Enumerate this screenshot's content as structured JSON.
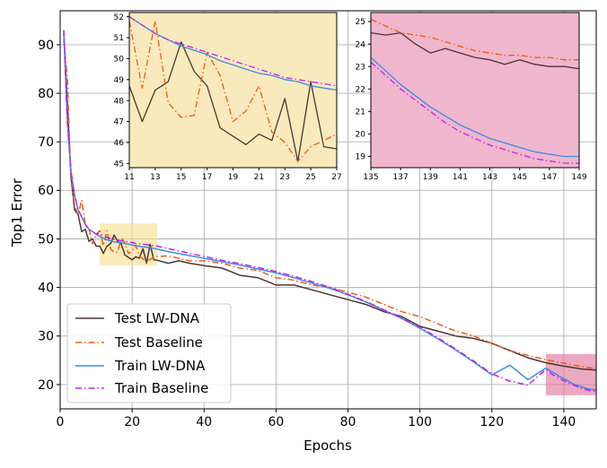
{
  "chart_data": [
    {
      "id": "main",
      "type": "line",
      "title": "",
      "xlabel": "Epochs",
      "ylabel": "Top1 Error",
      "xlim": [
        0,
        149
      ],
      "ylim": [
        15,
        97
      ],
      "xticks": [
        0,
        20,
        40,
        60,
        80,
        100,
        120,
        140
      ],
      "yticks": [
        20,
        30,
        40,
        50,
        60,
        70,
        80,
        90
      ],
      "grid": true,
      "legend_position": "bottom-left",
      "highlight_regions": [
        {
          "x": [
            11,
            27
          ],
          "y": [
            44.5,
            53.2
          ],
          "color": "#f5e08c"
        },
        {
          "x": [
            135,
            149
          ],
          "y": [
            17.8,
            26.3
          ],
          "color": "#e07098"
        }
      ],
      "series": [
        {
          "name": "Test LW-DNA",
          "color": "#4a3633",
          "style": "solid",
          "x": [
            1,
            2,
            3,
            4,
            5,
            6,
            7,
            8,
            9,
            10,
            11,
            12,
            13,
            14,
            15,
            16,
            17,
            18,
            19,
            20,
            21,
            22,
            23,
            24,
            25,
            26,
            27,
            30,
            33,
            36,
            40,
            45,
            50,
            55,
            60,
            65,
            70,
            75,
            80,
            85,
            90,
            95,
            100,
            105,
            110,
            115,
            120,
            125,
            130,
            135,
            140,
            145,
            149
          ],
          "y": [
            92.5,
            78,
            63,
            56,
            55,
            51.5,
            52,
            49.5,
            50,
            48.5,
            48.5,
            47,
            48.5,
            49,
            50.8,
            49.5,
            48.9,
            46.7,
            46.2,
            45.7,
            46.3,
            46,
            48,
            45,
            48.9,
            45.7,
            45.6,
            45,
            45.5,
            45,
            44.5,
            44,
            42.5,
            42,
            40.5,
            40.5,
            39.5,
            38.5,
            37.5,
            36.5,
            35,
            34,
            32,
            31,
            30,
            29.5,
            28.5,
            27,
            25.5,
            24.5,
            23.8,
            23.2,
            23
          ]
        },
        {
          "name": "Test Baseline",
          "color": "#f05a14",
          "style": "dashdot",
          "x": [
            1,
            2,
            3,
            4,
            5,
            6,
            7,
            8,
            9,
            10,
            11,
            12,
            13,
            14,
            15,
            16,
            17,
            18,
            19,
            20,
            21,
            22,
            23,
            24,
            25,
            26,
            27,
            30,
            33,
            36,
            40,
            45,
            50,
            55,
            60,
            65,
            70,
            75,
            80,
            85,
            90,
            95,
            100,
            105,
            110,
            115,
            120,
            125,
            130,
            135,
            140,
            145,
            149
          ],
          "y": [
            91,
            83,
            62,
            57,
            55,
            58,
            53,
            52,
            49,
            51,
            51.7,
            48.6,
            51.7,
            48,
            47.2,
            47.3,
            50.2,
            49.2,
            47,
            47.5,
            48.7,
            46.5,
            45.9,
            45.1,
            45.8,
            46.2,
            46.4,
            46.5,
            46,
            45.5,
            45.5,
            45,
            44,
            43.5,
            42,
            41.5,
            40.5,
            40,
            39,
            38,
            36.5,
            35,
            34,
            32.5,
            31,
            30,
            28.5,
            27,
            26,
            25.1,
            24.4,
            23.7,
            23.3
          ]
        },
        {
          "name": "Train LW-DNA",
          "color": "#3c8ce6",
          "style": "solid",
          "x": [
            1,
            2,
            3,
            4,
            5,
            6,
            7,
            8,
            9,
            10,
            11,
            13,
            15,
            17,
            19,
            21,
            23,
            25,
            27,
            30,
            35,
            40,
            45,
            50,
            55,
            60,
            65,
            70,
            75,
            80,
            85,
            90,
            95,
            100,
            105,
            110,
            115,
            120,
            125,
            130,
            135,
            137,
            139,
            141,
            143,
            145,
            147,
            149
          ],
          "y": [
            93,
            74,
            64,
            59,
            56,
            54.5,
            53,
            52,
            51.5,
            51,
            50.5,
            49.8,
            49.4,
            49.2,
            48.9,
            48.6,
            48.4,
            48.2,
            47.9,
            47.4,
            46.7,
            46,
            45.3,
            44.6,
            43.8,
            43,
            42,
            40.9,
            39.8,
            38.5,
            37,
            35.3,
            33.6,
            31.6,
            29.4,
            27.1,
            24.6,
            22,
            24,
            21,
            23.4,
            22.5,
            21.6,
            20.8,
            20,
            19.5,
            19.1,
            18.9
          ]
        },
        {
          "name": "Train Baseline",
          "color": "#c81ef0",
          "style": "dashdot",
          "x": [
            1,
            2,
            3,
            4,
            5,
            6,
            7,
            8,
            9,
            10,
            11,
            13,
            15,
            17,
            19,
            21,
            23,
            25,
            27,
            30,
            35,
            40,
            45,
            50,
            55,
            60,
            65,
            70,
            75,
            80,
            85,
            90,
            95,
            100,
            105,
            110,
            115,
            120,
            125,
            130,
            135,
            137,
            139,
            141,
            143,
            145,
            147,
            149
          ],
          "y": [
            93,
            74,
            64,
            59,
            56,
            54.5,
            53,
            52,
            51.5,
            51,
            51.1,
            50.3,
            49.9,
            49.6,
            49.4,
            49.1,
            48.9,
            48.7,
            48.5,
            48,
            47.2,
            46.4,
            45.6,
            44.9,
            44.1,
            43.3,
            42.3,
            41.2,
            40,
            38.6,
            37.1,
            35.4,
            33.7,
            31.8,
            29.6,
            27.3,
            24.8,
            22.2,
            20.7,
            19.9,
            23.1,
            22,
            21.2,
            20.4,
            19.8,
            19.2,
            18.8,
            18.6
          ]
        }
      ]
    },
    {
      "id": "inset1",
      "type": "line",
      "background": "#f8eabc",
      "xlim": [
        11,
        27
      ],
      "ylim": [
        44.8,
        52.2
      ],
      "xticks": [
        11,
        13,
        15,
        17,
        19,
        21,
        23,
        25,
        27
      ],
      "yticks": [
        45,
        46,
        47,
        48,
        49,
        50,
        51,
        52
      ],
      "grid": false,
      "series": [
        {
          "name": "Test LW-DNA",
          "color": "#4a3633",
          "style": "solid",
          "x": [
            11,
            12,
            13,
            14,
            15,
            16,
            17,
            18,
            19,
            20,
            21,
            22,
            23,
            24,
            25,
            26,
            27
          ],
          "y": [
            48.7,
            47,
            48.5,
            48.9,
            50.8,
            49.4,
            48.7,
            46.7,
            46.3,
            45.9,
            46.4,
            46.1,
            48.1,
            45.1,
            48.9,
            45.8,
            45.7
          ]
        },
        {
          "name": "Test Baseline",
          "color": "#f05a14",
          "style": "dashdot",
          "x": [
            11,
            12,
            13,
            14,
            15,
            16,
            17,
            18,
            19,
            20,
            21,
            22,
            23,
            24,
            25,
            26,
            27
          ],
          "y": [
            51.8,
            48.6,
            51.8,
            47.9,
            47.2,
            47.3,
            50.3,
            49.2,
            47,
            47.5,
            48.7,
            46.5,
            46,
            45.1,
            45.8,
            46.1,
            46.4
          ]
        },
        {
          "name": "Train LW-DNA",
          "color": "#3c8ce6",
          "style": "solid",
          "x": [
            11,
            12,
            13,
            14,
            15,
            16,
            17,
            18,
            19,
            20,
            21,
            22,
            23,
            24,
            25,
            26,
            27
          ],
          "y": [
            52,
            51.6,
            51.2,
            50.9,
            50.6,
            50.4,
            50.2,
            49.9,
            49.7,
            49.5,
            49.3,
            49.2,
            49,
            48.9,
            48.7,
            48.6,
            48.5
          ]
        },
        {
          "name": "Train Baseline",
          "color": "#c81ef0",
          "style": "dashdot",
          "x": [
            11,
            12,
            13,
            14,
            15,
            16,
            17,
            18,
            19,
            20,
            21,
            22,
            23,
            24,
            25,
            26,
            27
          ],
          "y": [
            52,
            51.6,
            51.2,
            50.9,
            50.7,
            50.5,
            50.3,
            50.1,
            49.9,
            49.7,
            49.5,
            49.3,
            49.1,
            49,
            48.9,
            48.8,
            48.7
          ]
        }
      ]
    },
    {
      "id": "inset2",
      "type": "line",
      "background": "#f0b6cd",
      "xlim": [
        135,
        149
      ],
      "ylim": [
        18.5,
        25.4
      ],
      "xticks": [
        135,
        137,
        139,
        141,
        143,
        145,
        147,
        149
      ],
      "yticks": [
        19,
        20,
        21,
        22,
        23,
        24,
        25
      ],
      "grid": false,
      "series": [
        {
          "name": "Test LW-DNA",
          "color": "#4a3633",
          "style": "solid",
          "x": [
            135,
            136,
            137,
            138,
            139,
            140,
            141,
            142,
            143,
            144,
            145,
            146,
            147,
            148,
            149
          ],
          "y": [
            24.5,
            24.4,
            24.5,
            24,
            23.6,
            23.8,
            23.6,
            23.4,
            23.3,
            23.1,
            23.3,
            23.1,
            23,
            23,
            22.9
          ]
        },
        {
          "name": "Test Baseline",
          "color": "#f05a14",
          "style": "dashdot",
          "x": [
            135,
            136,
            137,
            138,
            139,
            140,
            141,
            142,
            143,
            144,
            145,
            146,
            147,
            148,
            149
          ],
          "y": [
            25.1,
            24.8,
            24.5,
            24.4,
            24.3,
            24.1,
            23.9,
            23.7,
            23.6,
            23.5,
            23.5,
            23.4,
            23.4,
            23.3,
            23.3
          ]
        },
        {
          "name": "Train LW-DNA",
          "color": "#3c8ce6",
          "style": "solid",
          "x": [
            135,
            136,
            137,
            138,
            139,
            140,
            141,
            142,
            143,
            144,
            145,
            146,
            147,
            148,
            149
          ],
          "y": [
            23.4,
            22.8,
            22.2,
            21.7,
            21.2,
            20.8,
            20.4,
            20.1,
            19.8,
            19.6,
            19.4,
            19.2,
            19.1,
            19,
            19
          ]
        },
        {
          "name": "Train Baseline",
          "color": "#c81ef0",
          "style": "dashdot",
          "x": [
            135,
            136,
            137,
            138,
            139,
            140,
            141,
            142,
            143,
            144,
            145,
            146,
            147,
            148,
            149
          ],
          "y": [
            23.2,
            22.6,
            22,
            21.5,
            21,
            20.5,
            20.1,
            19.8,
            19.5,
            19.3,
            19.1,
            18.9,
            18.8,
            18.7,
            18.7
          ]
        }
      ]
    }
  ]
}
